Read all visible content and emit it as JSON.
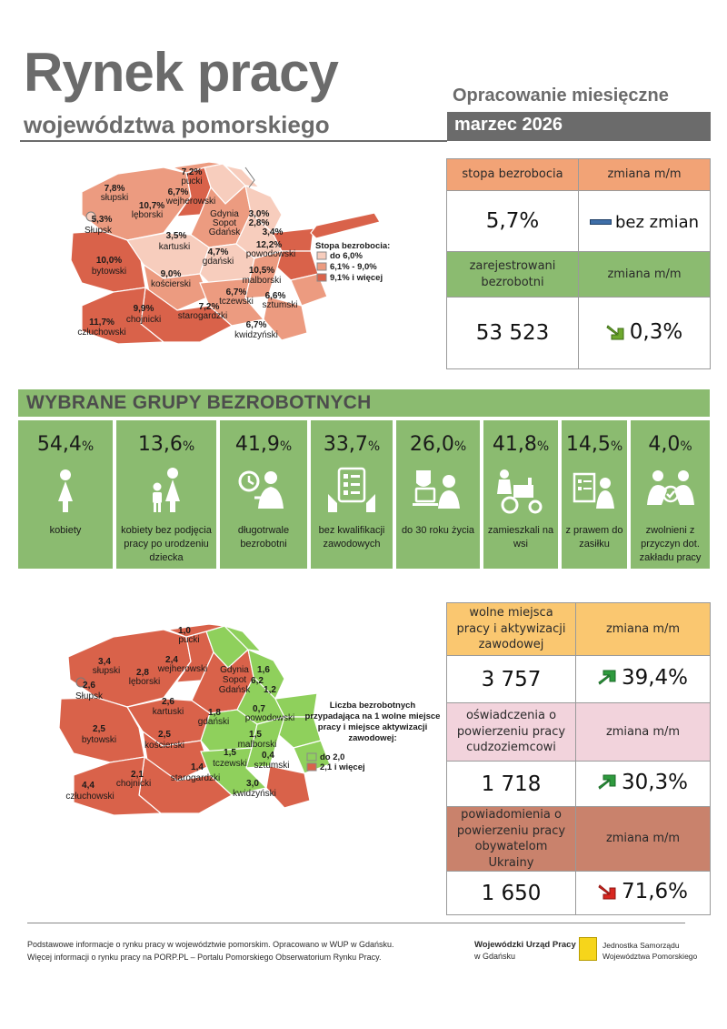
{
  "header": {
    "title": "Rynek pracy",
    "subtitle": "województwa pomorskiego",
    "report_type": "Opracowanie miesięczne",
    "period": "marzec 2026"
  },
  "unemployment_table": {
    "rate_header": "stopa bezrobocia",
    "change_header": "zmiana m/m",
    "rate_value": "5,7%",
    "rate_change": "bez zmian",
    "registered_header": "zarejestrowani bezrobotni",
    "registered_change_header": "zmiana m/m",
    "registered_value": "53 523",
    "registered_change": "0,3%"
  },
  "map1": {
    "legend_title": "Stopa bezrobocia:",
    "legend": [
      "do 6,0%",
      "6,1% - 9,0%",
      "9,1% i więcej"
    ],
    "colors": {
      "low": "#f7cdbd",
      "mid": "#ec9b80",
      "high": "#d9624a"
    },
    "regions": [
      {
        "name": "pucki",
        "value": "7,2%"
      },
      {
        "name": "słupski",
        "value": "7,8%"
      },
      {
        "name": "wejherowski",
        "value": "6,7%"
      },
      {
        "name": "lęborski",
        "value": "10,7%"
      },
      {
        "name": "Słupsk",
        "value": "5,3%"
      },
      {
        "name": "Gdynia",
        "value": "3,0%"
      },
      {
        "name": "Sopot",
        "value": "2,8%"
      },
      {
        "name": "Gdańsk",
        "value": "3,4%"
      },
      {
        "name": "kartuski",
        "value": "3,5%"
      },
      {
        "name": "powodowski",
        "value": "12,2%"
      },
      {
        "name": "gdański",
        "value": "4,7%"
      },
      {
        "name": "bytowski",
        "value": "10,0%"
      },
      {
        "name": "kościerski",
        "value": "9,0%"
      },
      {
        "name": "malborski",
        "value": "10,5%"
      },
      {
        "name": "tczewski",
        "value": "6,7%"
      },
      {
        "name": "sztumski",
        "value": "6,6%"
      },
      {
        "name": "chojnicki",
        "value": "9,9%"
      },
      {
        "name": "starogardzki",
        "value": "7,2%"
      },
      {
        "name": "człuchowski",
        "value": "11,7%"
      },
      {
        "name": "kwidzyński",
        "value": "6,7%"
      }
    ]
  },
  "groups": {
    "title": "WYBRANE GRUPY BEZROBOTNYCH",
    "items": [
      {
        "value": "54,4",
        "unit": "%",
        "label": "kobiety",
        "icon": "woman-icon"
      },
      {
        "value": "13,6",
        "unit": "%",
        "label": "kobiety bez podjęcia pracy po urodzeniu dziecka",
        "icon": "mother-child-icon"
      },
      {
        "value": "41,9",
        "unit": "%",
        "label": "długotrwale bezrobotni",
        "icon": "clock-person-icon"
      },
      {
        "value": "33,7",
        "unit": "%",
        "label": "bez kwalifikacji zawodowych",
        "icon": "checklist-hand-icon"
      },
      {
        "value": "26,0",
        "unit": "%",
        "label": "do 30 roku życia",
        "icon": "youth-computer-icon"
      },
      {
        "value": "41,8",
        "unit": "%",
        "label": "zamieszkali na wsi",
        "icon": "tractor-icon"
      },
      {
        "value": "14,5",
        "unit": "%",
        "label": "z prawem do zasiłku",
        "icon": "document-person-icon"
      },
      {
        "value": "4,0",
        "unit": "%",
        "label": "zwolnieni z przyczyn dot. zakładu pracy",
        "icon": "handshake-icon"
      }
    ]
  },
  "map2": {
    "legend_title": "Liczba bezrobotnych przypadająca na 1 wolne miejsce pracy i miejsce aktywizacji zawodowej:",
    "legend": [
      "do 2,0",
      "2,1 i więcej"
    ],
    "colors": {
      "low": "#8fd05c",
      "high": "#d9624a"
    },
    "regions": [
      {
        "name": "pucki",
        "value": "1,0"
      },
      {
        "name": "słupski",
        "value": "3,4"
      },
      {
        "name": "wejherowski",
        "value": "2,4"
      },
      {
        "name": "lęborski",
        "value": "2,8"
      },
      {
        "name": "Słupsk",
        "value": "2,6"
      },
      {
        "name": "Gdynia",
        "value": "1,6"
      },
      {
        "name": "Sopot",
        "value": "6,2"
      },
      {
        "name": "Gdańsk",
        "value": "1,2"
      },
      {
        "name": "kartuski",
        "value": "2,6"
      },
      {
        "name": "powodowski",
        "value": "0,7"
      },
      {
        "name": "gdański",
        "value": "1,8"
      },
      {
        "name": "bytowski",
        "value": "2,5"
      },
      {
        "name": "kościerski",
        "value": "2,5"
      },
      {
        "name": "malborski",
        "value": "1,5"
      },
      {
        "name": "tczewski",
        "value": "1,5"
      },
      {
        "name": "sztumski",
        "value": "0,4"
      },
      {
        "name": "chojnicki",
        "value": "2,1"
      },
      {
        "name": "starogardzki",
        "value": "1,4"
      },
      {
        "name": "człuchowski",
        "value": "4,4"
      },
      {
        "name": "kwidzyński",
        "value": "3,0"
      }
    ]
  },
  "offers_table": {
    "rows": [
      {
        "header": "wolne miejsca pracy i aktywizacji zawodowej",
        "change_header": "zmiana m/m",
        "value": "3 757",
        "change": "39,4%",
        "direction": "up"
      },
      {
        "header": "oświadczenia o powierzeniu pracy cudzoziemcowi",
        "change_header": "zmiana m/m",
        "value": "1 718",
        "change": "30,3%",
        "direction": "up"
      },
      {
        "header": "powiadomienia o powierzeniu pracy obywatelom Ukrainy",
        "change_header": "zmiana m/m",
        "value": "1 650",
        "change": "71,6%",
        "direction": "down"
      }
    ]
  },
  "footer": {
    "line1": "Podstawowe informacje o rynku pracy w województwie pomorskim. Opracowano w WUP w Gdańsku.",
    "line2": "Więcej informacji o rynku pracy na PORP.PL – Portalu Pomorskiego Obserwatorium Rynku Pracy.",
    "wup_name": "Wojewódzki Urząd Pracy",
    "wup_city": "w Gdańsku",
    "jsw_line1": "Jednostka Samorządu",
    "jsw_line2": "Województwa Pomorskiego"
  }
}
